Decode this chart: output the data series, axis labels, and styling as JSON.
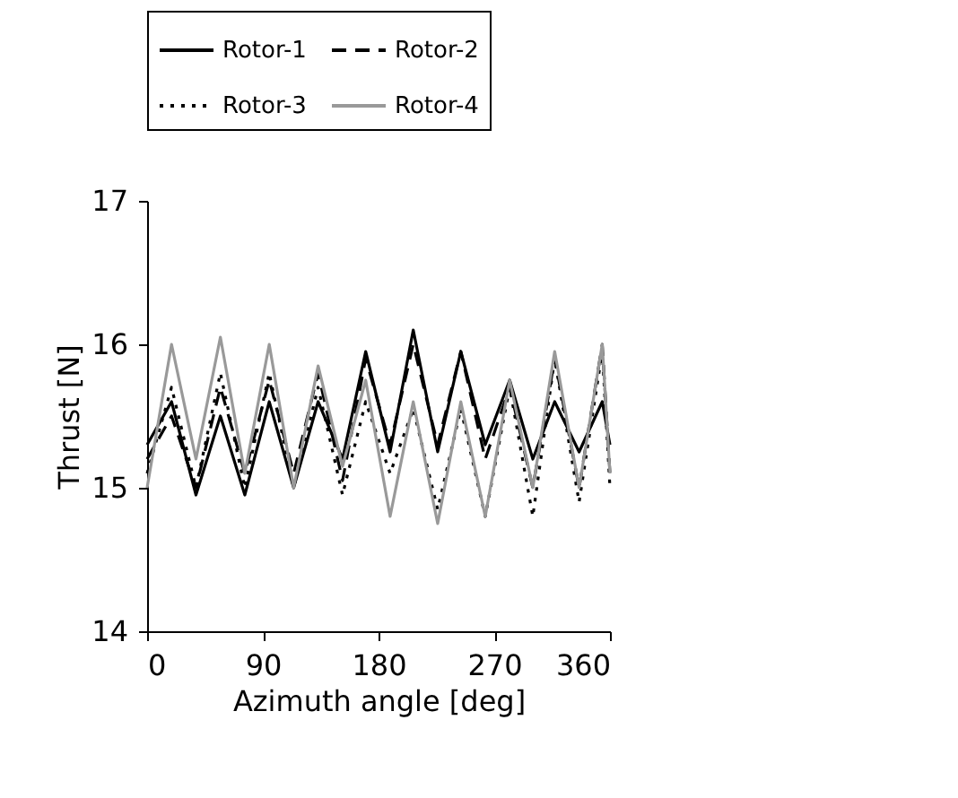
{
  "chart_data": {
    "type": "line",
    "xlabel": "Azimuth angle [deg]",
    "ylabel": "Thrust [N]",
    "x": [
      0,
      19,
      38,
      57,
      76,
      95,
      114,
      133,
      152,
      170,
      189,
      207,
      226,
      244,
      263,
      282,
      300,
      317,
      336,
      354,
      360
    ],
    "series": [
      {
        "name": "Rotor-1",
        "color": "#000000",
        "line_style": "solid",
        "values": [
          15.3,
          15.6,
          14.95,
          15.5,
          14.95,
          15.6,
          15.0,
          15.6,
          15.2,
          15.95,
          15.25,
          16.1,
          15.25,
          15.95,
          15.3,
          15.75,
          15.2,
          15.6,
          15.25,
          15.6,
          15.3
        ]
      },
      {
        "name": "Rotor-2",
        "color": "#000000",
        "line_style": "dashed",
        "values": [
          15.2,
          15.5,
          15.0,
          15.7,
          15.1,
          15.75,
          15.1,
          15.8,
          15.05,
          15.9,
          15.3,
          16.0,
          15.3,
          15.95,
          15.2,
          15.7,
          15.0,
          15.9,
          15.0,
          16.0,
          15.1
        ]
      },
      {
        "name": "Rotor-3",
        "color": "#000000",
        "line_style": "dotted",
        "values": [
          15.1,
          15.7,
          15.0,
          15.8,
          15.0,
          15.8,
          15.0,
          15.7,
          14.95,
          15.6,
          15.1,
          15.55,
          14.85,
          15.55,
          14.8,
          15.7,
          14.8,
          15.9,
          14.9,
          15.95,
          15.0
        ]
      },
      {
        "name": "Rotor-4",
        "color": "#999999",
        "line_style": "solid",
        "values": [
          15.0,
          16.0,
          15.2,
          16.05,
          15.1,
          16.0,
          15.0,
          15.85,
          15.15,
          15.75,
          14.8,
          15.6,
          14.75,
          15.6,
          14.8,
          15.75,
          15.0,
          15.95,
          15.0,
          16.0,
          15.1
        ]
      }
    ],
    "xlim": [
      0,
      360
    ],
    "xticks": [
      0,
      90,
      180,
      270,
      360
    ],
    "ylim": [
      14,
      17
    ],
    "yticks": [
      14,
      15,
      16,
      17
    ],
    "legend": "top",
    "grid": false,
    "marker": "none"
  }
}
